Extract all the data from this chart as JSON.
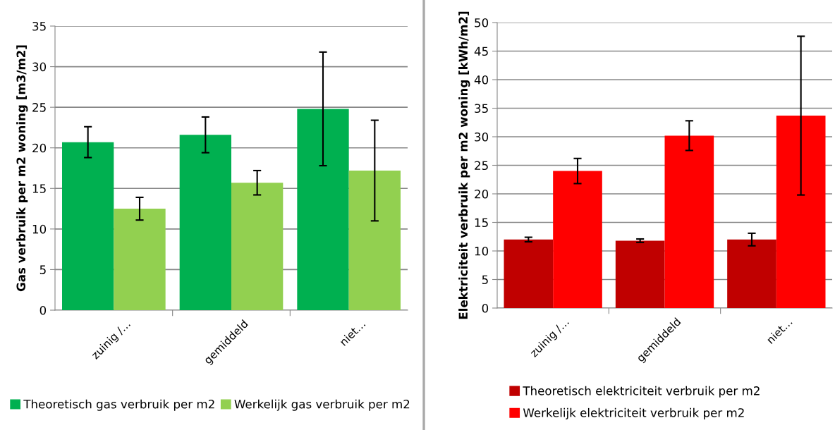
{
  "chart_data": [
    {
      "type": "bar",
      "ylabel": "Gas verbruik per m2 woning [m3/m2]",
      "categories": [
        "zuinig /…",
        "gemiddeld",
        "niet…"
      ],
      "ylim": [
        0,
        35
      ],
      "yticks": [
        0,
        5,
        10,
        15,
        20,
        25,
        30,
        35
      ],
      "grid": "y",
      "legend": "bottom",
      "series": [
        {
          "name": "Theoretisch gas verbruik per m2",
          "color": "#00b050",
          "values": [
            20.7,
            21.6,
            24.8
          ],
          "errors": [
            1.9,
            2.2,
            7.0
          ]
        },
        {
          "name": "Werkelijk gas verbruik per m2",
          "color": "#92d050",
          "values": [
            12.5,
            15.7,
            17.2
          ],
          "errors": [
            1.4,
            1.5,
            6.2
          ]
        }
      ]
    },
    {
      "type": "bar",
      "ylabel": "Elektriciteit verbruik per m2 woning [kWh/m2]",
      "categories": [
        "zuinig /…",
        "gemiddeld",
        "niet…"
      ],
      "ylim": [
        0,
        50
      ],
      "yticks": [
        0,
        5,
        10,
        15,
        20,
        25,
        30,
        35,
        40,
        45,
        50
      ],
      "grid": "y",
      "legend": "bottom",
      "series": [
        {
          "name": "Theoretisch elektriciteit verbruik per m2",
          "color": "#c00000",
          "values": [
            12.0,
            11.8,
            12.0
          ],
          "errors": [
            0.4,
            0.3,
            1.1
          ]
        },
        {
          "name": "Werkelijk elektriciteit verbruik per m2",
          "color": "#ff0000",
          "values": [
            24.0,
            30.2,
            33.7
          ],
          "errors": [
            2.2,
            2.6,
            13.9
          ]
        }
      ]
    }
  ]
}
